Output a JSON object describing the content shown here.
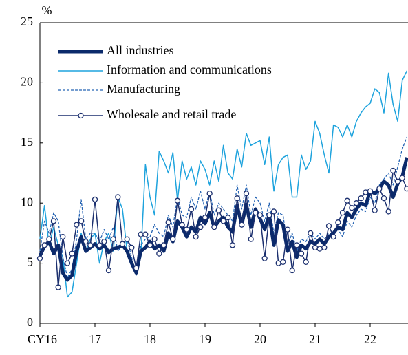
{
  "chart_data": {
    "type": "line",
    "y_unit": "%",
    "categories": [
      "CY16",
      null,
      null,
      null,
      null,
      null,
      null,
      null,
      null,
      null,
      null,
      null,
      "17",
      null,
      null,
      null,
      null,
      null,
      null,
      null,
      null,
      null,
      null,
      null,
      "18",
      null,
      null,
      null,
      null,
      null,
      null,
      null,
      null,
      null,
      null,
      null,
      "19",
      null,
      null,
      null,
      null,
      null,
      null,
      null,
      null,
      null,
      null,
      null,
      "20",
      null,
      null,
      null,
      null,
      null,
      null,
      null,
      null,
      null,
      null,
      null,
      "21",
      null,
      null,
      null,
      null,
      null,
      null,
      null,
      null,
      null,
      null,
      null,
      "22",
      null,
      null,
      null,
      null,
      null,
      null,
      null,
      null
    ],
    "ylim": [
      0,
      25
    ],
    "yticks": [
      0,
      5,
      10,
      15,
      20,
      25
    ],
    "legend": "upper left",
    "series": [
      {
        "name": "All industries",
        "color": "#0b2a6b",
        "linestyle": "solid",
        "values": [
          5.6,
          6.4,
          6.8,
          5.8,
          6.5,
          4.2,
          3.6,
          4.0,
          6.0,
          7.2,
          6.0,
          6.3,
          6.6,
          6.2,
          6.5,
          5.9,
          6.2,
          6.3,
          6.5,
          6.0,
          5.0,
          4.2,
          6.0,
          6.3,
          6.8,
          6.2,
          6.5,
          6.0,
          7.5,
          6.8,
          8.5,
          8.0,
          7.2,
          8.0,
          7.6,
          8.8,
          8.3,
          9.2,
          8.0,
          8.5,
          8.8,
          8.0,
          7.6,
          9.8,
          8.2,
          9.9,
          8.0,
          9.5,
          8.7,
          7.8,
          9.0,
          6.5,
          8.6,
          8.2,
          6.0,
          6.8,
          5.5,
          6.5,
          6.2,
          6.8,
          6.6,
          7.0,
          6.6,
          7.2,
          7.5,
          8.0,
          7.8,
          9.2,
          8.8,
          9.5,
          10.0,
          9.8,
          11.0,
          10.8,
          11.2,
          11.8,
          11.5,
          10.5,
          11.6,
          12.2,
          13.8
        ]
      },
      {
        "name": "Information and communications",
        "color": "#1ea3dd",
        "linestyle": "solid",
        "values": [
          7.0,
          9.8,
          6.5,
          8.0,
          6.5,
          5.5,
          2.2,
          2.6,
          5.0,
          7.5,
          6.0,
          7.0,
          7.5,
          5.0,
          6.8,
          7.5,
          6.0,
          10.5,
          9.5,
          6.0,
          5.0,
          4.5,
          5.5,
          13.2,
          10.5,
          9.0,
          14.3,
          13.5,
          12.5,
          14.2,
          10.2,
          13.5,
          12.0,
          13.0,
          11.5,
          13.5,
          12.8,
          11.5,
          13.5,
          11.8,
          14.8,
          12.5,
          12.0,
          14.5,
          13.0,
          15.8,
          14.8,
          15.0,
          15.2,
          13.2,
          15.5,
          11.0,
          13.2,
          13.8,
          14.0,
          10.5,
          10.5,
          14.0,
          12.8,
          13.5,
          16.8,
          15.8,
          14.0,
          12.5,
          16.5,
          16.3,
          15.5,
          16.5,
          15.5,
          16.8,
          17.5,
          18.0,
          18.3,
          19.5,
          19.2,
          17.5,
          20.8,
          18.2,
          16.8,
          20.2,
          21.0
        ]
      },
      {
        "name": "Manufacturing",
        "color": "#2463b3",
        "linestyle": "dashed",
        "values": [
          6.0,
          8.5,
          7.5,
          9.2,
          8.5,
          5.5,
          3.8,
          4.5,
          7.0,
          10.3,
          7.0,
          7.5,
          7.5,
          6.8,
          7.8,
          7.0,
          8.0,
          6.0,
          6.5,
          7.0,
          5.5,
          4.0,
          6.5,
          7.0,
          7.2,
          8.2,
          7.5,
          7.2,
          9.0,
          8.0,
          10.5,
          9.0,
          8.8,
          10.5,
          9.5,
          11.0,
          9.5,
          11.0,
          9.0,
          10.0,
          9.5,
          9.0,
          8.5,
          11.5,
          9.5,
          11.5,
          9.0,
          10.5,
          10.0,
          8.5,
          10.0,
          7.5,
          9.2,
          9.0,
          6.5,
          7.5,
          6.0,
          7.0,
          6.8,
          7.5,
          7.0,
          7.5,
          7.0,
          7.5,
          7.5,
          7.8,
          7.2,
          8.5,
          8.0,
          9.0,
          9.5,
          9.3,
          10.5,
          10.0,
          11.5,
          12.0,
          12.5,
          11.5,
          13.0,
          14.5,
          15.5
        ]
      },
      {
        "name": "Wholesale and retail trade",
        "color": "#1b2f6e",
        "linestyle": "solid",
        "marker": "circle",
        "values": [
          5.4,
          6.5,
          7.0,
          8.5,
          3.0,
          7.2,
          5.0,
          5.8,
          8.2,
          8.5,
          6.8,
          6.5,
          10.3,
          6.5,
          6.8,
          4.4,
          7.0,
          10.5,
          6.6,
          7.0,
          6.3,
          4.6,
          7.4,
          7.4,
          6.5,
          7.0,
          5.8,
          6.5,
          8.4,
          7.0,
          10.2,
          8.2,
          7.8,
          9.5,
          7.2,
          8.0,
          8.8,
          10.8,
          8.0,
          9.4,
          8.5,
          8.8,
          6.5,
          10.4,
          8.2,
          10.8,
          7.0,
          9.2,
          9.0,
          5.4,
          9.0,
          9.3,
          5.0,
          5.1,
          7.8,
          4.4,
          6.5,
          5.8,
          5.1,
          7.5,
          6.3,
          6.2,
          6.3,
          8.1,
          7.2,
          8.4,
          9.2,
          10.2,
          9.6,
          10.0,
          10.4,
          10.9,
          11.0,
          9.4,
          11.2,
          10.4,
          9.3,
          12.7,
          11.8,
          12.1,
          11.2
        ]
      }
    ]
  }
}
